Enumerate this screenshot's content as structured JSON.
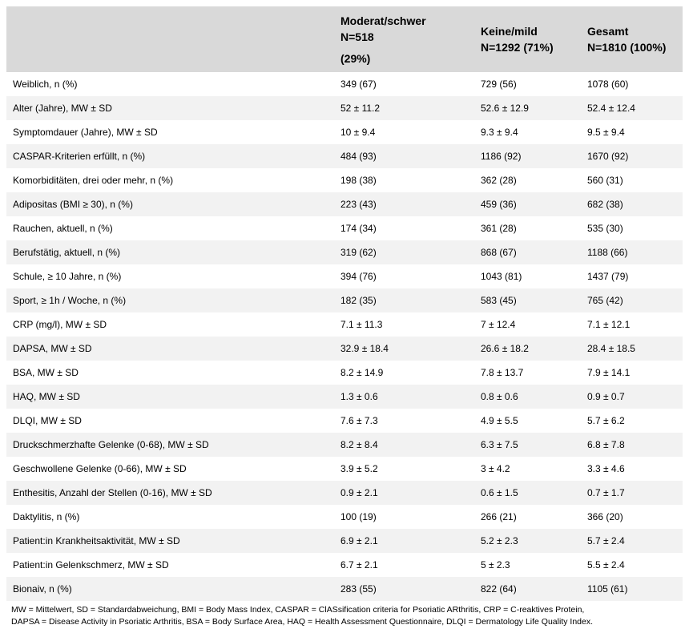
{
  "table": {
    "headers": [
      {
        "line1": "",
        "line2": "",
        "line3": ""
      },
      {
        "line1": "Moderat/schwer",
        "line2": "N=518",
        "line3": "(29%)"
      },
      {
        "line1": "Keine/mild",
        "line2": "N=1292 (71%)",
        "line3": ""
      },
      {
        "line1": "Gesamt",
        "line2": "N=1810 (100%)",
        "line3": ""
      }
    ],
    "rows": [
      [
        "Weiblich, n (%)",
        "349 (67)",
        "729 (56)",
        "1078 (60)"
      ],
      [
        "Alter (Jahre), MW ± SD",
        "52 ± 11.2",
        "52.6 ± 12.9",
        "52.4 ± 12.4"
      ],
      [
        "Symptomdauer (Jahre), MW ± SD",
        "10 ± 9.4",
        "9.3 ± 9.4",
        "9.5 ± 9.4"
      ],
      [
        "CASPAR-Kriterien erfüllt, n (%)",
        "484 (93)",
        "1186 (92)",
        "1670 (92)"
      ],
      [
        "Komorbiditäten, drei oder mehr, n (%)",
        "198 (38)",
        "362 (28)",
        "560 (31)"
      ],
      [
        "Adipositas (BMI ≥ 30), n (%)",
        "223 (43)",
        "459 (36)",
        "682 (38)"
      ],
      [
        "Rauchen, aktuell, n (%)",
        "174 (34)",
        "361 (28)",
        "535 (30)"
      ],
      [
        "Berufstätig, aktuell, n (%)",
        "319 (62)",
        "868 (67)",
        "1188 (66)"
      ],
      [
        "Schule, ≥ 10 Jahre, n (%)",
        "394 (76)",
        "1043 (81)",
        "1437 (79)"
      ],
      [
        "Sport, ≥ 1h / Woche, n (%)",
        "182 (35)",
        "583 (45)",
        "765 (42)"
      ],
      [
        "CRP (mg/l), MW ± SD",
        "7.1 ± 11.3",
        "7 ± 12.4",
        "7.1 ± 12.1"
      ],
      [
        "DAPSA, MW ± SD",
        "32.9 ± 18.4",
        "26.6 ± 18.2",
        "28.4 ± 18.5"
      ],
      [
        "BSA, MW ± SD",
        "8.2 ± 14.9",
        "7.8 ± 13.7",
        "7.9 ± 14.1"
      ],
      [
        "HAQ, MW ± SD",
        "1.3 ± 0.6",
        "0.8 ± 0.6",
        "0.9 ± 0.7"
      ],
      [
        "DLQI, MW ± SD",
        "7.6 ± 7.3",
        "4.9 ± 5.5",
        "5.7 ± 6.2"
      ],
      [
        "Druckschmerzhafte Gelenke (0-68), MW ± SD",
        "8.2 ± 8.4",
        "6.3 ± 7.5",
        "6.8 ± 7.8"
      ],
      [
        "Geschwollene Gelenke (0-66), MW ± SD",
        "3.9 ± 5.2",
        "3 ± 4.2",
        "3.3 ± 4.6"
      ],
      [
        "Enthesitis, Anzahl der Stellen (0-16), MW ± SD",
        "0.9 ± 2.1",
        "0.6 ± 1.5",
        "0.7 ± 1.7"
      ],
      [
        "Daktylitis, n (%)",
        "100 (19)",
        "266 (21)",
        "366 (20)"
      ],
      [
        "Patient:in Krankheitsaktivität, MW ± SD",
        "6.9 ± 2.1",
        "5.2 ± 2.3",
        "5.7 ± 2.4"
      ],
      [
        "Patient:in Gelenkschmerz, MW ± SD",
        "6.7 ± 2.1",
        "5 ± 2.3",
        "5.5 ± 2.4"
      ],
      [
        "Bionaiv, n (%)",
        "283 (55)",
        "822 (64)",
        "1105 (61)"
      ]
    ]
  },
  "footnote": {
    "line1": "MW = Mittelwert, SD = Standardabweichung, BMI = Body Mass Index, CASPAR = ClASsification criteria for Psoriatic ARthritis, CRP = C-reaktives Protein,",
    "line2": "DAPSA = Disease Activity in Psoriatic Arthritis, BSA = Body Surface Area, HAQ = Health Assessment Questionnaire, DLQI = Dermatology Life Quality Index."
  }
}
